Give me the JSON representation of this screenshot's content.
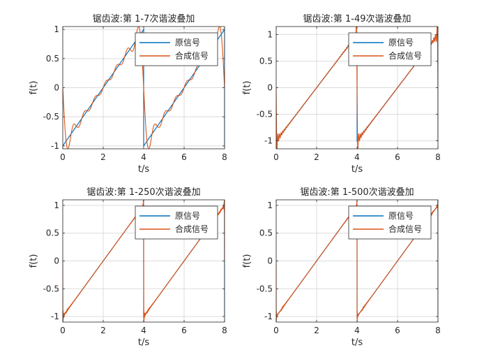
{
  "colors": {
    "original": "#0072BD",
    "synthesized": "#D95319",
    "grid": "#dcdcdc",
    "axes": "#262626"
  },
  "chart_data": [
    {
      "type": "line",
      "title": "锯齿波:第 1-7次谐波叠加",
      "xlabel": "t/s",
      "ylabel": "f(t)",
      "xlim": [
        0,
        8
      ],
      "ylim": [
        -1.05,
        1.05
      ],
      "xticks": [
        "0",
        "2",
        "4",
        "6",
        "8"
      ],
      "yticks": [
        "-1",
        "-0.5",
        "0",
        "0.5",
        "1"
      ],
      "grid": true,
      "legend": {
        "position": "top-right",
        "entries": [
          "原信号",
          "合成信号"
        ]
      },
      "harmonics": 7,
      "series": [
        {
          "name": "原信号",
          "kind": "sawtooth",
          "period": 4,
          "amplitude": 1
        },
        {
          "name": "合成信号",
          "kind": "fourier-sawtooth",
          "harmonics": 7
        }
      ]
    },
    {
      "type": "line",
      "title": "锯齿波:第 1-49次谐波叠加",
      "xlabel": "t/s",
      "ylabel": "f(t)",
      "xlim": [
        0,
        8
      ],
      "ylim": [
        -1.15,
        1.15
      ],
      "xticks": [
        "0",
        "2",
        "4",
        "6",
        "8"
      ],
      "yticks": [
        "-1",
        "-0.5",
        "0",
        "0.5",
        "1"
      ],
      "grid": true,
      "legend": {
        "position": "top-right",
        "entries": [
          "原信号",
          "合成信号"
        ]
      },
      "harmonics": 49,
      "series": [
        {
          "name": "原信号",
          "kind": "sawtooth",
          "period": 4,
          "amplitude": 1
        },
        {
          "name": "合成信号",
          "kind": "fourier-sawtooth",
          "harmonics": 49
        }
      ]
    },
    {
      "type": "line",
      "title": "锯齿波:第 1-250次谐波叠加",
      "xlabel": "t/s",
      "ylabel": "f(t)",
      "xlim": [
        0,
        8
      ],
      "ylim": [
        -1.1,
        1.1
      ],
      "xticks": [
        "0",
        "2",
        "4",
        "6",
        "8"
      ],
      "yticks": [
        "-1",
        "-0.5",
        "0",
        "0.5",
        "1"
      ],
      "grid": true,
      "legend": {
        "position": "top-right",
        "entries": [
          "原信号",
          "合成信号"
        ]
      },
      "harmonics": 250,
      "series": [
        {
          "name": "原信号",
          "kind": "sawtooth",
          "period": 4,
          "amplitude": 1
        },
        {
          "name": "合成信号",
          "kind": "fourier-sawtooth",
          "harmonics": 250
        }
      ]
    },
    {
      "type": "line",
      "title": "锯齿波:第 1-500次谐波叠加",
      "xlabel": "t/s",
      "ylabel": "f(t)",
      "xlim": [
        0,
        8
      ],
      "ylim": [
        -1.1,
        1.1
      ],
      "xticks": [
        "0",
        "2",
        "4",
        "6",
        "8"
      ],
      "yticks": [
        "-1",
        "-0.5",
        "0",
        "0.5",
        "1"
      ],
      "grid": true,
      "legend": {
        "position": "top-right",
        "entries": [
          "原信号",
          "合成信号"
        ]
      },
      "harmonics": 500,
      "series": [
        {
          "name": "原信号",
          "kind": "sawtooth",
          "period": 4,
          "amplitude": 1
        },
        {
          "name": "合成信号",
          "kind": "fourier-sawtooth",
          "harmonics": 500
        }
      ]
    }
  ]
}
